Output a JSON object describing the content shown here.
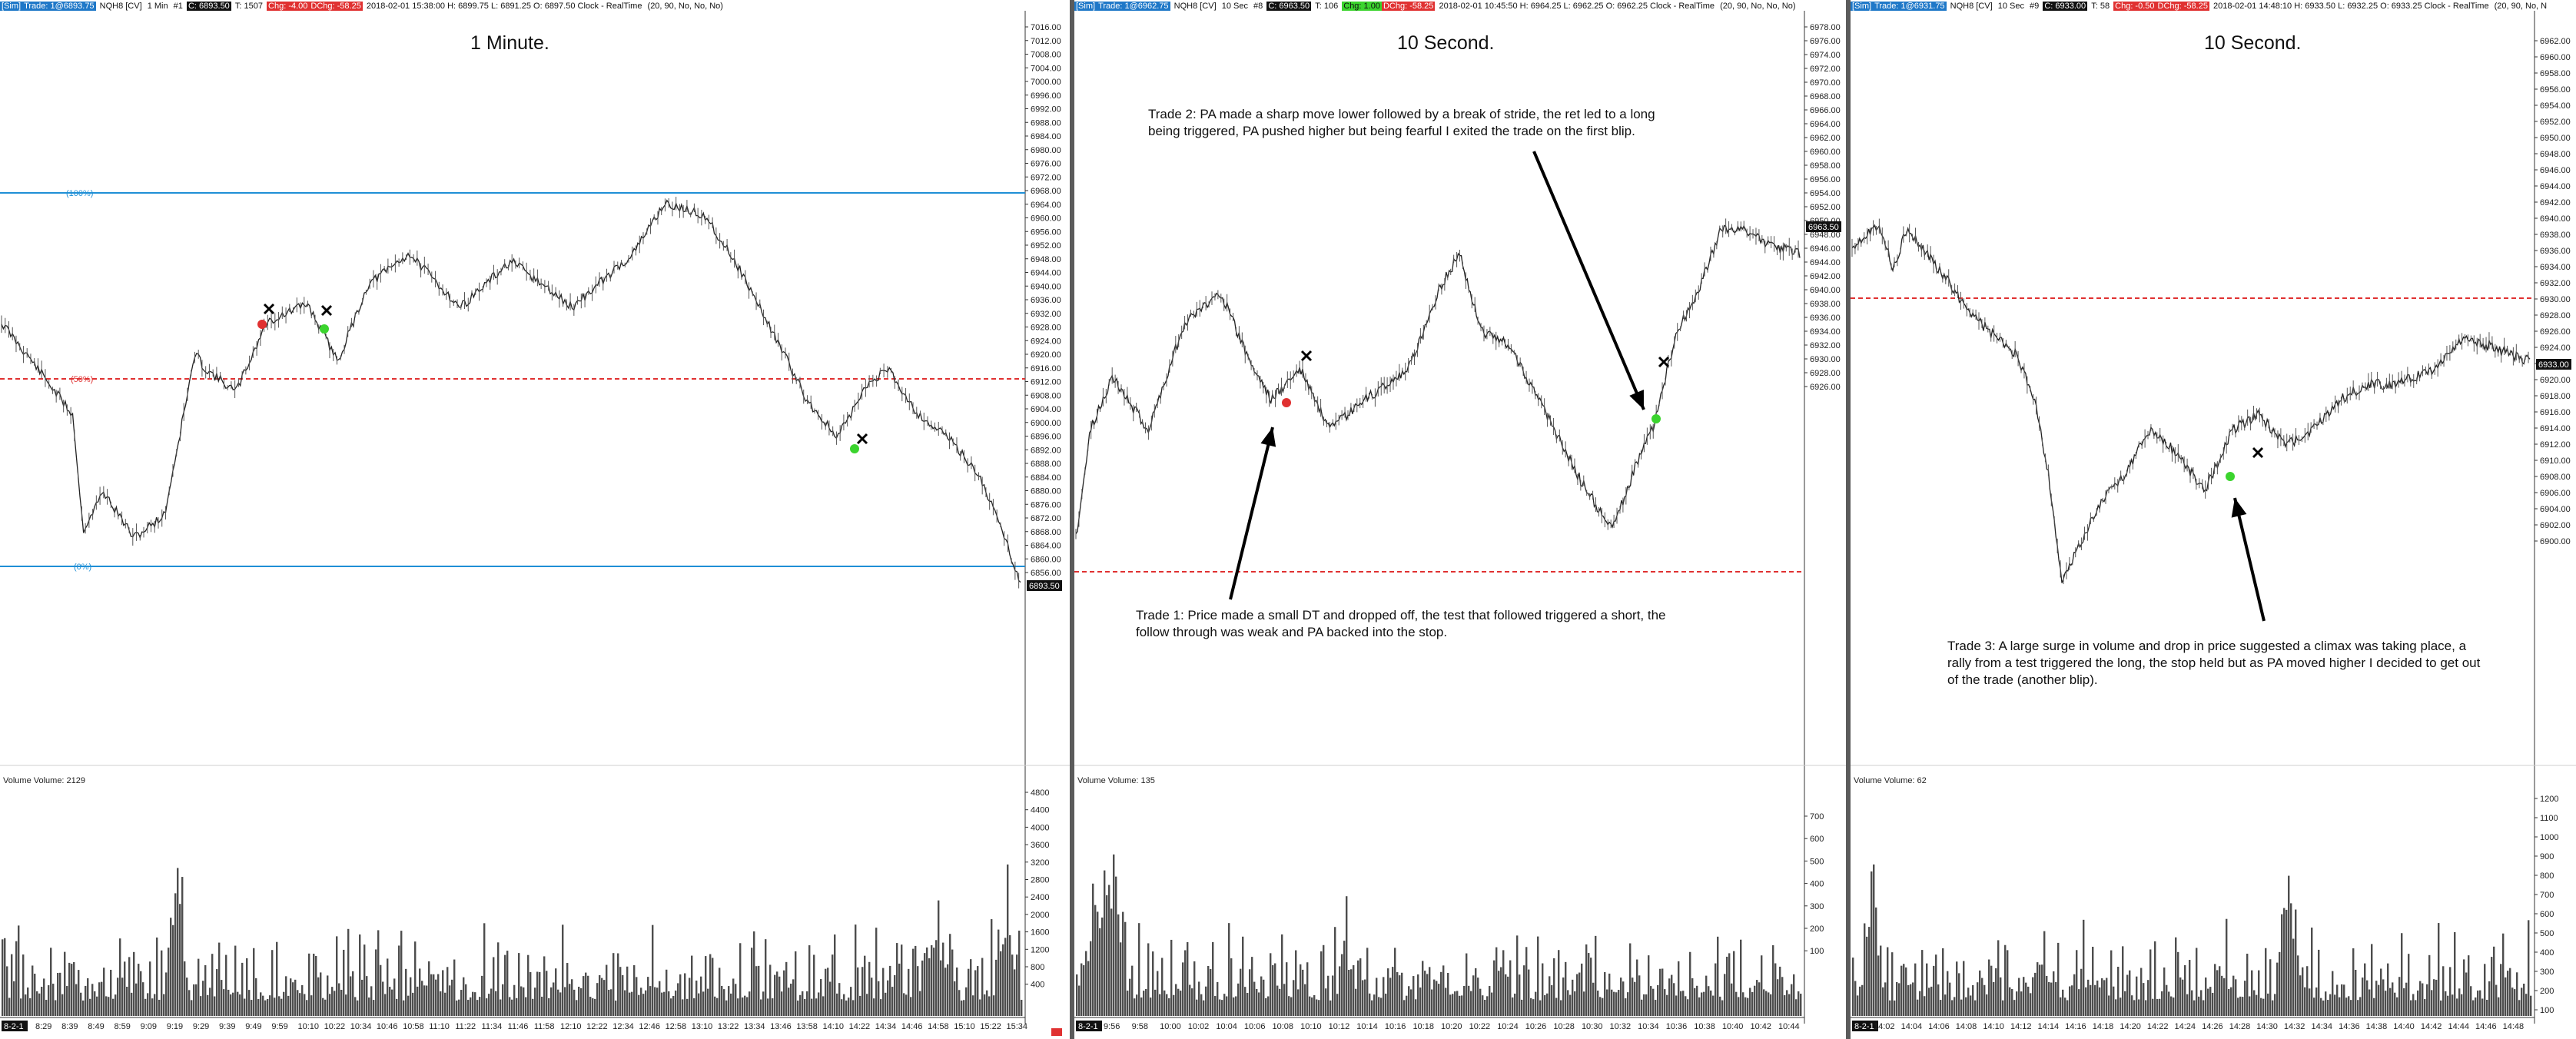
{
  "panels": [
    {
      "infobar": {
        "sim": "[Sim]",
        "trade": "Trade: 1@6893.75",
        "symbol": "NQH8 [CV]",
        "interval": "1 Min",
        "count": "#1",
        "close_label": "C: 6893.50",
        "ticks": "T: 1507",
        "chg": "Chg: -4.00",
        "dchg": "DChg: -58.25",
        "stamp": "2018-02-01 15:38:00 H: 6899.75 L: 6891.25 O: 6897.50 Clock - RealTime",
        "params": "(20, 90, No, No, No)"
      },
      "title": "1 Minute.",
      "price_ticks": [
        "7016.00",
        "7012.00",
        "7008.00",
        "7004.00",
        "7000.00",
        "6996.00",
        "6992.00",
        "6988.00",
        "6984.00",
        "6980.00",
        "6976.00",
        "6972.00",
        "6968.00",
        "6964.00",
        "6960.00",
        "6956.00",
        "6952.00",
        "6948.00",
        "6944.00",
        "6940.00",
        "6936.00",
        "6932.00",
        "6928.00",
        "6924.00",
        "6920.00",
        "6916.00",
        "6912.00",
        "6908.00",
        "6904.00",
        "6900.00",
        "6896.00",
        "6892.00",
        "6888.00",
        "6884.00",
        "6880.00",
        "6876.00",
        "6872.00",
        "6868.00",
        "6864.00",
        "6860.00",
        "6856.00"
      ],
      "price_axis_bottom": "6852.00",
      "current_price": "6893.50",
      "fib_labels": [
        "(100%)",
        "(50%)",
        "(0%)"
      ],
      "volume_label": "Volume  Volume: 2129",
      "volume_ticks": [
        "4800",
        "4400",
        "4000",
        "3600",
        "3200",
        "2800",
        "2400",
        "2000",
        "1600",
        "1200",
        "800",
        "400"
      ],
      "time_ticks": [
        "8:29",
        "8:39",
        "8:49",
        "8:59",
        "9:09",
        "9:19",
        "9:29",
        "9:39",
        "9:49",
        "9:59",
        "10:10",
        "10:22",
        "10:34",
        "10:46",
        "10:58",
        "11:10",
        "11:22",
        "11:34",
        "11:46",
        "11:58",
        "12:10",
        "12:22",
        "12:34",
        "12:46",
        "12:58",
        "13:10",
        "13:22",
        "13:34",
        "13:46",
        "13:58",
        "14:10",
        "14:22",
        "14:34",
        "14:46",
        "14:58",
        "15:10",
        "15:22",
        "15:34"
      ],
      "time_start": "8-2-1"
    },
    {
      "infobar": {
        "sim": "[Sim]",
        "trade": "Trade: 1@6962.75",
        "symbol": "NQH8 [CV]",
        "interval": "10 Sec",
        "count": "#8",
        "close_label": "C: 6963.50",
        "ticks": "T: 106",
        "chg": "Chg: 1.00",
        "dchg": "DChg: -58.25",
        "stamp": "2018-02-01 10:45:50 H: 6964.25 L: 6962.25 O: 6962.25 Clock - RealTime",
        "params": "(20, 90, No, No, No)"
      },
      "title": "10 Second.",
      "price_ticks": [
        "6978.00",
        "6976.00",
        "6974.00",
        "6972.00",
        "6970.00",
        "6968.00",
        "6966.00",
        "6964.00",
        "6962.00",
        "6960.00",
        "6958.00",
        "6956.00",
        "6954.00",
        "6952.00",
        "6950.00",
        "6948.00",
        "6946.00",
        "6944.00",
        "6942.00",
        "6940.00",
        "6938.00",
        "6936.00",
        "6934.00",
        "6932.00",
        "6930.00",
        "6928.00",
        "6926.00"
      ],
      "current_price": "6963.50",
      "volume_label": "Volume  Volume: 135",
      "volume_ticks": [
        "700",
        "600",
        "500",
        "400",
        "300",
        "200",
        "100"
      ],
      "time_ticks": [
        "9:56",
        "9:58",
        "10:00",
        "10:02",
        "10:04",
        "10:06",
        "10:08",
        "10:10",
        "10:12",
        "10:14",
        "10:16",
        "10:18",
        "10:20",
        "10:22",
        "10:24",
        "10:26",
        "10:28",
        "10:30",
        "10:32",
        "10:34",
        "10:36",
        "10:38",
        "10:40",
        "10:42",
        "10:44"
      ],
      "time_start": "8-2-1",
      "annotations": [
        "Trade 2:  PA made a sharp move lower followed by a break of stride, the ret led to a long being triggered, PA pushed higher but being fearful I exited the trade on the first blip.",
        "Trade 1:  Price made a small DT and dropped off, the test that followed  triggered a short, the follow through was weak and PA backed into the stop."
      ]
    },
    {
      "infobar": {
        "sim": "[Sim]",
        "trade": "Trade: 1@6931.75",
        "symbol": "NQH8 [CV]",
        "interval": "10 Sec",
        "count": "#9",
        "close_label": "C: 6933.00",
        "ticks": "T: 58",
        "chg": "Chg: -0.50",
        "dchg": "DChg: -58.25",
        "stamp": "2018-02-01 14:48:10 H: 6933.50 L: 6932.25 O: 6933.25 Clock - RealTime",
        "params": "(20, 90, No, N"
      },
      "title": "10 Second.",
      "price_ticks": [
        "6962.00",
        "6960.00",
        "6958.00",
        "6956.00",
        "6954.00",
        "6952.00",
        "6950.00",
        "6948.00",
        "6946.00",
        "6944.00",
        "6942.00",
        "6940.00",
        "6938.00",
        "6936.00",
        "6934.00",
        "6932.00",
        "6930.00",
        "6928.00",
        "6926.00",
        "6924.00",
        "6922.00",
        "6920.00",
        "6918.00",
        "6916.00",
        "6914.00",
        "6912.00",
        "6910.00",
        "6908.00",
        "6906.00",
        "6904.00",
        "6902.00",
        "6900.00"
      ],
      "current_price": "6933.00",
      "volume_label": "Volume  Volume: 62",
      "volume_ticks": [
        "1200",
        "1100",
        "1000",
        "900",
        "800",
        "700",
        "600",
        "500",
        "400",
        "300",
        "200",
        "100"
      ],
      "time_ticks": [
        "14:02",
        "14:04",
        "14:06",
        "14:08",
        "14:10",
        "14:12",
        "14:14",
        "14:16",
        "14:18",
        "14:20",
        "14:22",
        "14:24",
        "14:26",
        "14:28",
        "14:30",
        "14:32",
        "14:34",
        "14:36",
        "14:38",
        "14:40",
        "14:42",
        "14:44",
        "14:46",
        "14:48"
      ],
      "time_start": "8-2-1",
      "annotations": [
        "Trade 3:  A large surge in volume and drop in price suggested a climax was taking place, a rally from a test triggered the long, the stop held but as PA moved higher I decided to get out of the trade (another blip)."
      ]
    }
  ],
  "colors": {
    "fib": "#1f8fd6",
    "mid_dashed": "#e03131",
    "entry_short": "#e03131",
    "entry_long": "#3bd42e",
    "volume": "#4d4d4d"
  }
}
